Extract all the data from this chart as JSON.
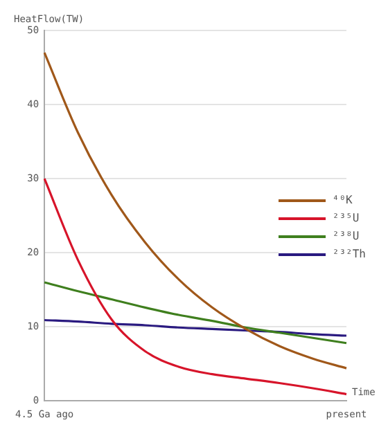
{
  "chart_data": {
    "type": "line",
    "ylabel": "HeatFlow(TW)",
    "xlabel": "Time",
    "categories": [
      "4.5 Ga ago",
      null,
      null,
      null,
      null,
      null,
      null,
      null,
      null,
      "present"
    ],
    "ylim": [
      0,
      50
    ],
    "yticks": [
      0,
      10,
      20,
      30,
      40,
      50
    ],
    "grid": "y",
    "legend": "right",
    "marker": "none",
    "line_style": "solid",
    "series": [
      {
        "name": "⁴⁰K",
        "color": "#a0581a",
        "values": [
          47,
          36.2,
          27.8,
          21.4,
          16.4,
          12.6,
          9.7,
          7.4,
          5.7,
          4.4
        ]
      },
      {
        "name": "²³⁵U",
        "color": "#d7142a",
        "values": [
          30,
          19,
          11,
          6.7,
          4.6,
          3.6,
          3,
          2.4,
          1.7,
          0.9
        ]
      },
      {
        "name": "²³⁸U",
        "color": "#3f7f1e",
        "values": [
          16,
          14.8,
          13.7,
          12.6,
          11.6,
          10.8,
          9.9,
          9.2,
          8.5,
          7.8
        ]
      },
      {
        "name": "²³²Th",
        "color": "#2a1a80",
        "values": [
          10.9,
          10.7,
          10.4,
          10.2,
          9.9,
          9.7,
          9.5,
          9.3,
          9.0,
          8.8
        ]
      }
    ]
  }
}
